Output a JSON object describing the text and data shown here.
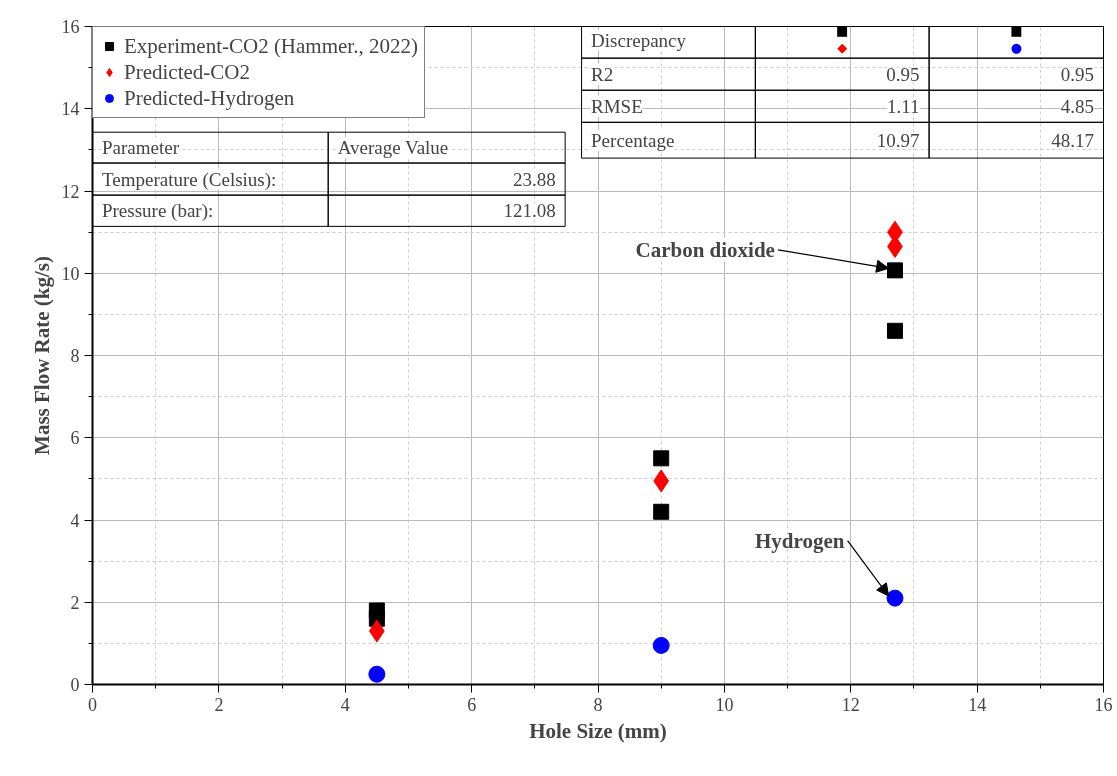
{
  "chart_data": {
    "type": "scatter",
    "xlabel": "Hole Size (mm)",
    "ylabel": "Mass Flow Rate (kg/s)",
    "xlim": [
      0,
      16
    ],
    "ylim": [
      0,
      16
    ],
    "xticks": [
      0,
      2,
      4,
      6,
      8,
      10,
      12,
      14,
      16
    ],
    "yticks": [
      0,
      2,
      4,
      6,
      8,
      10,
      12,
      14,
      16
    ],
    "grid": true,
    "legend": "top left",
    "series": [
      {
        "name": "Experiment-CO2 (Hammer., 2022)",
        "color": "#000000",
        "marker": "square",
        "x": [
          4.5,
          4.5,
          9,
          9,
          12.7,
          12.7
        ],
        "values": [
          1.8,
          1.6,
          5.5,
          4.2,
          10.07,
          8.6
        ]
      },
      {
        "name": "Predicted-CO2",
        "color": "#ff0000",
        "marker": "diamond",
        "x": [
          4.5,
          9,
          12.7,
          12.7
        ],
        "values": [
          1.3,
          4.95,
          11.0,
          10.65
        ]
      },
      {
        "name": "Predicted-Hydrogen",
        "color": "#0000ff",
        "marker": "circle",
        "x": [
          4.5,
          9,
          12.7
        ],
        "values": [
          0.25,
          0.95,
          2.1
        ]
      }
    ],
    "annotations": [
      "Parameter",
      "Average Value",
      "Temperature (Celsius):",
      "23.88",
      "Pressure (bar):",
      "121.08",
      "Discrepancy",
      "■",
      "◆",
      "■",
      "●",
      "R2",
      "0.95",
      "0.95",
      "RMSE",
      "1.11",
      "4.85",
      "Percentage",
      "10.97",
      "48.17",
      {
        "text": "Carbon dioxide",
        "x": 12.7,
        "y": 10.07
      },
      {
        "text": "Hydrogen",
        "x": 12.7,
        "y": 2.1
      }
    ]
  }
}
